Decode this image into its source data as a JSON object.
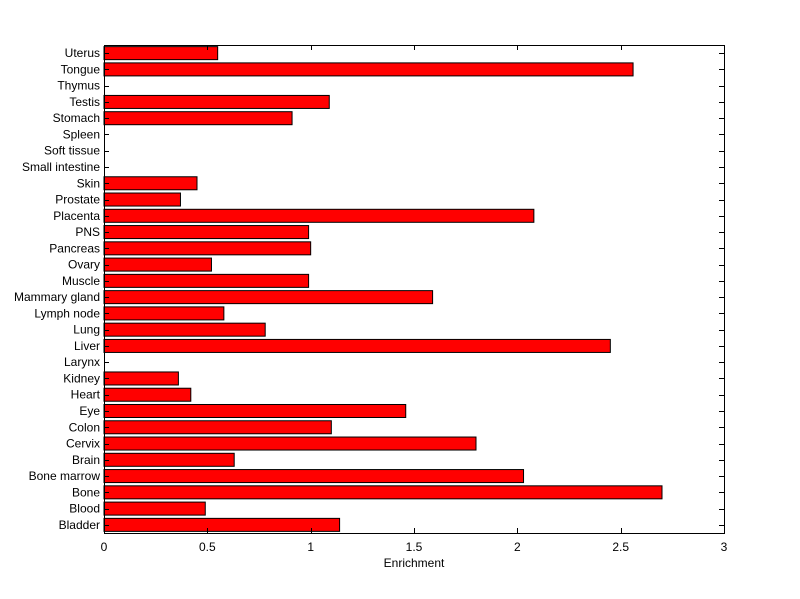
{
  "chart_data": {
    "type": "bar",
    "orientation": "horizontal",
    "title": "",
    "xlabel": "Enrichment",
    "ylabel": "",
    "xlim": [
      0,
      3
    ],
    "xticks": [
      0,
      0.5,
      1,
      1.5,
      2,
      2.5,
      3
    ],
    "xtick_labels": [
      "0",
      "0.5",
      "1",
      "1.5",
      "2",
      "2.5",
      "3"
    ],
    "grid": false,
    "legend": "none",
    "bar_color": "#ff0000",
    "bar_edge_color": "#000000",
    "categories": [
      "Bladder",
      "Blood",
      "Bone",
      "Bone marrow",
      "Brain",
      "Cervix",
      "Colon",
      "Eye",
      "Heart",
      "Kidney",
      "Larynx",
      "Liver",
      "Lung",
      "Lymph node",
      "Mammary gland",
      "Muscle",
      "Ovary",
      "Pancreas",
      "PNS",
      "Placenta",
      "Prostate",
      "Skin",
      "Small intestine",
      "Soft tissue",
      "Spleen",
      "Stomach",
      "Testis",
      "Thymus",
      "Tongue",
      "Uterus"
    ],
    "values": [
      1.14,
      0.49,
      2.7,
      2.03,
      0.63,
      1.8,
      1.1,
      1.46,
      0.42,
      0.36,
      0,
      2.45,
      0.78,
      0.58,
      1.59,
      0.99,
      0.52,
      1.0,
      0.99,
      2.08,
      0.37,
      0.45,
      0,
      0,
      0,
      0.91,
      1.09,
      0,
      2.56,
      0.55
    ]
  }
}
